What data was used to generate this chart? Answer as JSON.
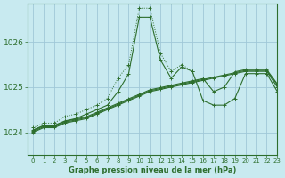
{
  "title": "Graphe pression niveau de la mer (hPa)",
  "background_color": "#c8eaf0",
  "grid_color": "#a0c8d8",
  "line_color": "#2d6e2d",
  "xlim": [
    -0.5,
    23
  ],
  "ylim": [
    1023.5,
    1026.85
  ],
  "yticks": [
    1024,
    1025,
    1026
  ],
  "xticks": [
    0,
    1,
    2,
    3,
    4,
    5,
    6,
    7,
    8,
    9,
    10,
    11,
    12,
    13,
    14,
    15,
    16,
    17,
    18,
    19,
    20,
    21,
    22,
    23
  ],
  "series": [
    {
      "x": [
        0,
        1,
        2,
        3,
        4,
        5,
        6,
        7,
        8,
        9,
        10,
        11,
        12,
        13,
        14,
        15,
        16,
        17,
        18,
        19,
        20,
        21,
        22,
        23
      ],
      "y": [
        1024.1,
        1024.2,
        1024.2,
        1024.35,
        1024.4,
        1024.5,
        1024.6,
        1024.75,
        1025.2,
        1025.5,
        1026.75,
        1026.75,
        1025.75,
        1025.35,
        1025.5,
        1025.35,
        null,
        null,
        null,
        null,
        null,
        null,
        null,
        null
      ],
      "linestyle": "dotted"
    },
    {
      "x": [
        0,
        1,
        2,
        3,
        4,
        5,
        6,
        7,
        8,
        9,
        10,
        11,
        12,
        13,
        14,
        15,
        16,
        17,
        18,
        19,
        20,
        21,
        22,
        23
      ],
      "y": [
        1024.05,
        1024.15,
        1024.15,
        1024.25,
        1024.3,
        1024.4,
        1024.5,
        1024.6,
        1024.9,
        1025.3,
        1026.55,
        1026.55,
        1025.6,
        1025.2,
        1025.45,
        1025.35,
        1024.7,
        1024.6,
        1024.6,
        1024.75,
        1025.3,
        1025.3,
        1025.3,
        1024.9
      ],
      "linestyle": "solid"
    },
    {
      "x": [
        0,
        1,
        2,
        3,
        4,
        5,
        6,
        7,
        8,
        9,
        10,
        11,
        12,
        13,
        14,
        15,
        16,
        17,
        18,
        19,
        20,
        21,
        22,
        23
      ],
      "y": [
        1024.0,
        1024.1,
        1024.1,
        1024.2,
        1024.25,
        1024.3,
        1024.4,
        1024.5,
        1024.6,
        1024.7,
        1024.8,
        1024.9,
        1024.95,
        1025.0,
        1025.05,
        1025.1,
        1025.15,
        1025.2,
        1025.25,
        1025.3,
        1025.35,
        1025.35,
        1025.35,
        1025.0
      ],
      "linestyle": "solid"
    },
    {
      "x": [
        0,
        1,
        2,
        3,
        4,
        5,
        6,
        7,
        8,
        9,
        10,
        11,
        12,
        13,
        14,
        15,
        16,
        17,
        18,
        19,
        20,
        21,
        22,
        23
      ],
      "y": [
        1024.02,
        1024.12,
        1024.12,
        1024.22,
        1024.27,
        1024.32,
        1024.42,
        1024.52,
        1024.62,
        1024.72,
        1024.82,
        1024.92,
        1024.97,
        1025.02,
        1025.07,
        1025.12,
        1025.17,
        1025.22,
        1025.27,
        1025.32,
        1025.37,
        1025.37,
        1025.37,
        1025.05
      ],
      "linestyle": "solid"
    },
    {
      "x": [
        0,
        1,
        2,
        3,
        4,
        5,
        6,
        7,
        8,
        9,
        10,
        11,
        12,
        13,
        14,
        15,
        16,
        17,
        18,
        19,
        20,
        21,
        22,
        23
      ],
      "y": [
        1024.04,
        1024.14,
        1024.14,
        1024.24,
        1024.29,
        1024.34,
        1024.44,
        1024.54,
        1024.64,
        1024.74,
        1024.84,
        1024.94,
        1024.99,
        1025.04,
        1025.09,
        1025.14,
        1025.19,
        1024.9,
        1025.0,
        1025.34,
        1025.39,
        1025.39,
        1025.39,
        1025.07
      ],
      "linestyle": "solid"
    }
  ]
}
